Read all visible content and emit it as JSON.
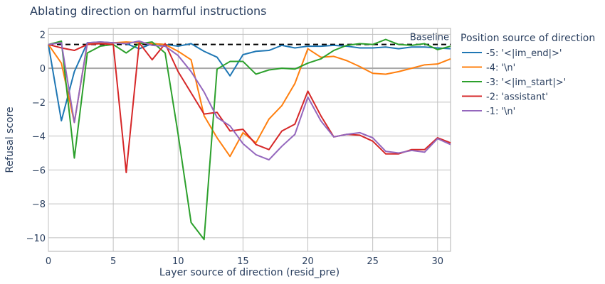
{
  "chart_data": {
    "type": "line",
    "title": "Ablating direction on harmful instructions",
    "xlabel": "Layer source of direction (resid_pre)",
    "ylabel": "Refusal score",
    "xlim": [
      0,
      31
    ],
    "ylim": [
      -10.8,
      2.35
    ],
    "xticks": [
      0,
      5,
      10,
      15,
      20,
      25,
      30
    ],
    "yticks": [
      2,
      0,
      -2,
      -4,
      -6,
      -8,
      -10
    ],
    "ytick_labels": [
      "2",
      "0",
      "−2",
      "−4",
      "−6",
      "−8",
      "−10"
    ],
    "grid": true,
    "baseline": {
      "label": "Baseline",
      "value": 1.4,
      "style": "dashed",
      "color": "#000000"
    },
    "zero_line": true,
    "legend": {
      "title": "Position source of direction",
      "position": "right"
    },
    "x": [
      0,
      1,
      2,
      3,
      4,
      5,
      6,
      7,
      8,
      9,
      10,
      11,
      12,
      13,
      14,
      15,
      16,
      17,
      18,
      19,
      20,
      21,
      22,
      23,
      24,
      25,
      26,
      27,
      28,
      29,
      30,
      31
    ],
    "series": [
      {
        "name": "-5: '<|im_end|>'",
        "color": "#1f77b4",
        "values": [
          1.4,
          -3.1,
          -0.2,
          1.5,
          1.55,
          1.5,
          1.45,
          1.15,
          1.45,
          1.4,
          1.3,
          1.45,
          1.0,
          0.65,
          -0.45,
          0.8,
          1.0,
          1.05,
          1.35,
          1.2,
          1.3,
          1.3,
          1.35,
          1.3,
          1.2,
          1.2,
          1.25,
          1.15,
          1.25,
          1.25,
          1.2,
          1.15
        ]
      },
      {
        "name": "-4: '\\n'",
        "color": "#ff7f0e",
        "values": [
          1.4,
          0.3,
          -3.2,
          1.45,
          1.5,
          1.5,
          1.55,
          1.5,
          1.45,
          1.4,
          1.0,
          0.5,
          -2.8,
          -4.1,
          -5.2,
          -3.8,
          -4.4,
          -3.0,
          -2.2,
          -0.9,
          1.15,
          0.65,
          0.7,
          0.45,
          0.1,
          -0.3,
          -0.35,
          -0.2,
          0.0,
          0.2,
          0.25,
          0.55
        ]
      },
      {
        "name": "-3: '<|im_start|>'",
        "color": "#2ca02c",
        "values": [
          1.4,
          1.6,
          -5.3,
          0.9,
          1.3,
          1.4,
          0.9,
          1.45,
          1.55,
          0.9,
          -3.9,
          -9.1,
          -10.1,
          -0.05,
          0.4,
          0.4,
          -0.35,
          -0.1,
          0.0,
          -0.05,
          0.3,
          0.55,
          1.05,
          1.35,
          1.45,
          1.4,
          1.7,
          1.4,
          1.35,
          1.45,
          1.1,
          1.3
        ]
      },
      {
        "name": "-2: 'assistant'",
        "color": "#d62728",
        "values": [
          1.4,
          1.2,
          1.05,
          1.4,
          1.45,
          1.4,
          -6.15,
          1.5,
          0.5,
          1.45,
          -0.2,
          -1.45,
          -2.7,
          -2.6,
          -3.7,
          -3.6,
          -4.5,
          -4.8,
          -3.7,
          -3.3,
          -1.35,
          -2.8,
          -4.05,
          -3.9,
          -3.95,
          -4.3,
          -5.05,
          -5.05,
          -4.8,
          -4.8,
          -4.1,
          -4.4
        ]
      },
      {
        "name": "-1: '\\n'",
        "color": "#9467bd",
        "values": [
          1.4,
          1.5,
          -3.2,
          1.5,
          1.55,
          1.5,
          1.45,
          1.6,
          1.35,
          1.3,
          0.75,
          -0.2,
          -1.4,
          -2.9,
          -3.4,
          -4.45,
          -5.1,
          -5.4,
          -4.6,
          -3.9,
          -1.7,
          -3.1,
          -4.05,
          -3.9,
          -3.8,
          -4.1,
          -4.9,
          -5.0,
          -4.85,
          -4.95,
          -4.15,
          -4.5
        ]
      }
    ]
  }
}
